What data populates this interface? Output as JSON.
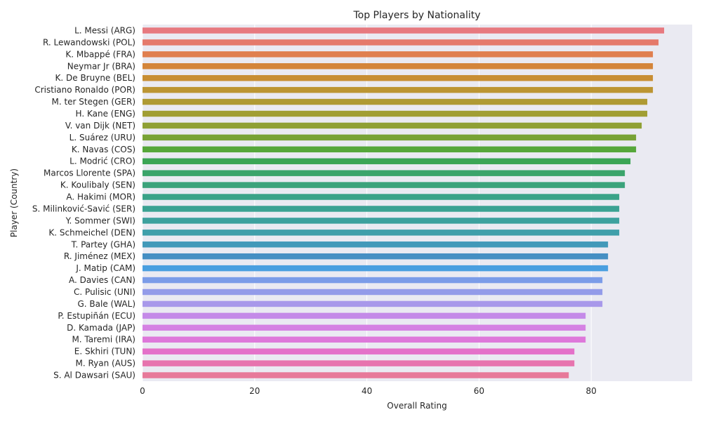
{
  "chart_data": {
    "type": "bar",
    "orientation": "horizontal",
    "title": "Top Players by Nationality",
    "xlabel": "Overall Rating",
    "ylabel": "Player (Country)",
    "xlim": [
      0,
      98
    ],
    "xticks": [
      0,
      20,
      40,
      60,
      80
    ],
    "grid": true,
    "background": "#EAEAF2",
    "categories": [
      "L. Messi (ARG)",
      "R. Lewandowski (POL)",
      "K. Mbappé (FRA)",
      "Neymar Jr (BRA)",
      "K. De Bruyne (BEL)",
      "Cristiano Ronaldo (POR)",
      "M. ter Stegen (GER)",
      "H. Kane (ENG)",
      "V. van Dijk (NET)",
      "L. Suárez (URU)",
      "K. Navas (COS)",
      "L. Modrić (CRO)",
      "Marcos Llorente (SPA)",
      "K. Koulibaly (SEN)",
      "A. Hakimi (MOR)",
      "S. Milinković-Savić (SER)",
      "Y. Sommer (SWI)",
      "K. Schmeichel (DEN)",
      "T. Partey (GHA)",
      "R. Jiménez (MEX)",
      "J. Matip (CAM)",
      "A. Davies (CAN)",
      "C. Pulisic (UNI)",
      "G. Bale (WAL)",
      "P. Estupiñán (ECU)",
      "D. Kamada (JAP)",
      "M. Taremi (IRA)",
      "E. Skhiri (TUN)",
      "M. Ryan (AUS)",
      "S. Al Dawsari (SAU)"
    ],
    "values": [
      93,
      92,
      91,
      91,
      91,
      91,
      90,
      90,
      89,
      88,
      88,
      87,
      86,
      86,
      85,
      85,
      85,
      85,
      83,
      83,
      83,
      82,
      82,
      82,
      79,
      79,
      79,
      77,
      77,
      76
    ],
    "colors": [
      "#E7797F",
      "#E57A6B",
      "#E07F4F",
      "#D4853A",
      "#C88E33",
      "#BC9533",
      "#AF9A33",
      "#A19E33",
      "#8FA034",
      "#78A235",
      "#56A73A",
      "#3BA555",
      "#3BA46B",
      "#3BA37B",
      "#3AA388",
      "#3BA293",
      "#3DA19E",
      "#3F9FAA",
      "#4299B9",
      "#458FC3",
      "#4A9FE0",
      "#7B9CE8",
      "#939BE9",
      "#A898EA",
      "#C48AE8",
      "#D581E3",
      "#DE78DA",
      "#E471C9",
      "#E774AE",
      "#E7799A"
    ]
  }
}
